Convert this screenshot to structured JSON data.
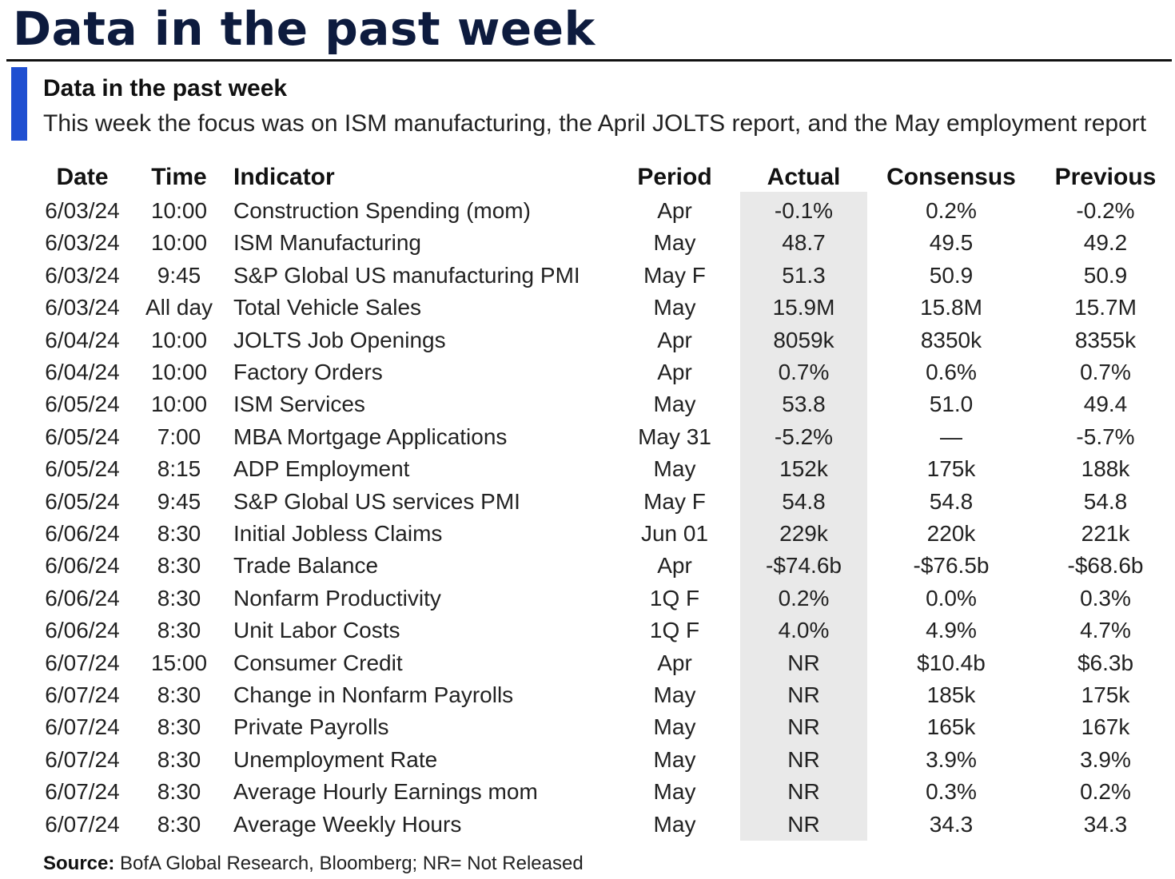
{
  "page_title": "Data in the past week",
  "subtitle": "Data in the past week",
  "description": "This week the focus was on ISM manufacturing, the April JOLTS report, and the May employment report",
  "accent_color": "#1f4fd1",
  "actual_column_shade_color": "#e9e9e9",
  "chart_data": {
    "type": "table",
    "title": "Data in the past week",
    "subtitle": "This week the focus was on ISM manufacturing, the April JOLTS report, and the May employment report",
    "columns": [
      "Date",
      "Time",
      "Indicator",
      "Period",
      "Actual",
      "Consensus",
      "Previous"
    ],
    "rows": [
      [
        "6/03/24",
        "10:00",
        "Construction Spending (mom)",
        "Apr",
        "-0.1%",
        "0.2%",
        "-0.2%"
      ],
      [
        "6/03/24",
        "10:00",
        "ISM Manufacturing",
        "May",
        "48.7",
        "49.5",
        "49.2"
      ],
      [
        "6/03/24",
        "9:45",
        "S&P Global US manufacturing PMI",
        "May F",
        "51.3",
        "50.9",
        "50.9"
      ],
      [
        "6/03/24",
        "All day",
        "Total Vehicle Sales",
        "May",
        "15.9M",
        "15.8M",
        "15.7M"
      ],
      [
        "6/04/24",
        "10:00",
        "JOLTS Job Openings",
        "Apr",
        "8059k",
        "8350k",
        "8355k"
      ],
      [
        "6/04/24",
        "10:00",
        "Factory Orders",
        "Apr",
        "0.7%",
        "0.6%",
        "0.7%"
      ],
      [
        "6/05/24",
        "10:00",
        "ISM Services",
        "May",
        "53.8",
        "51.0",
        "49.4"
      ],
      [
        "6/05/24",
        "7:00",
        "MBA Mortgage Applications",
        "May 31",
        "-5.2%",
        "—",
        "-5.7%"
      ],
      [
        "6/05/24",
        "8:15",
        "ADP Employment",
        "May",
        "152k",
        "175k",
        "188k"
      ],
      [
        "6/05/24",
        "9:45",
        "S&P Global US services PMI",
        "May F",
        "54.8",
        "54.8",
        "54.8"
      ],
      [
        "6/06/24",
        "8:30",
        "Initial Jobless Claims",
        "Jun 01",
        "229k",
        "220k",
        "221k"
      ],
      [
        "6/06/24",
        "8:30",
        "Trade Balance",
        "Apr",
        "-$74.6b",
        "-$76.5b",
        "-$68.6b"
      ],
      [
        "6/06/24",
        "8:30",
        "Nonfarm Productivity",
        "1Q F",
        "0.2%",
        "0.0%",
        "0.3%"
      ],
      [
        "6/06/24",
        "8:30",
        "Unit Labor Costs",
        "1Q F",
        "4.0%",
        "4.9%",
        "4.7%"
      ],
      [
        "6/07/24",
        "15:00",
        "Consumer Credit",
        "Apr",
        "NR",
        "$10.4b",
        "$6.3b"
      ],
      [
        "6/07/24",
        "8:30",
        "Change in Nonfarm Payrolls",
        "May",
        "NR",
        "185k",
        "175k"
      ],
      [
        "6/07/24",
        "8:30",
        "Private Payrolls",
        "May",
        "NR",
        "165k",
        "167k"
      ],
      [
        "6/07/24",
        "8:30",
        "Unemployment Rate",
        "May",
        "NR",
        "3.9%",
        "3.9%"
      ],
      [
        "6/07/24",
        "8:30",
        "Average Hourly Earnings mom",
        "May",
        "NR",
        "0.3%",
        "0.2%"
      ],
      [
        "6/07/24",
        "8:30",
        "Average Weekly Hours",
        "May",
        "NR",
        "34.3",
        "34.3"
      ]
    ]
  },
  "source": {
    "label": "Source:",
    "text": " BofA Global Research, Bloomberg; NR= Not Released"
  }
}
